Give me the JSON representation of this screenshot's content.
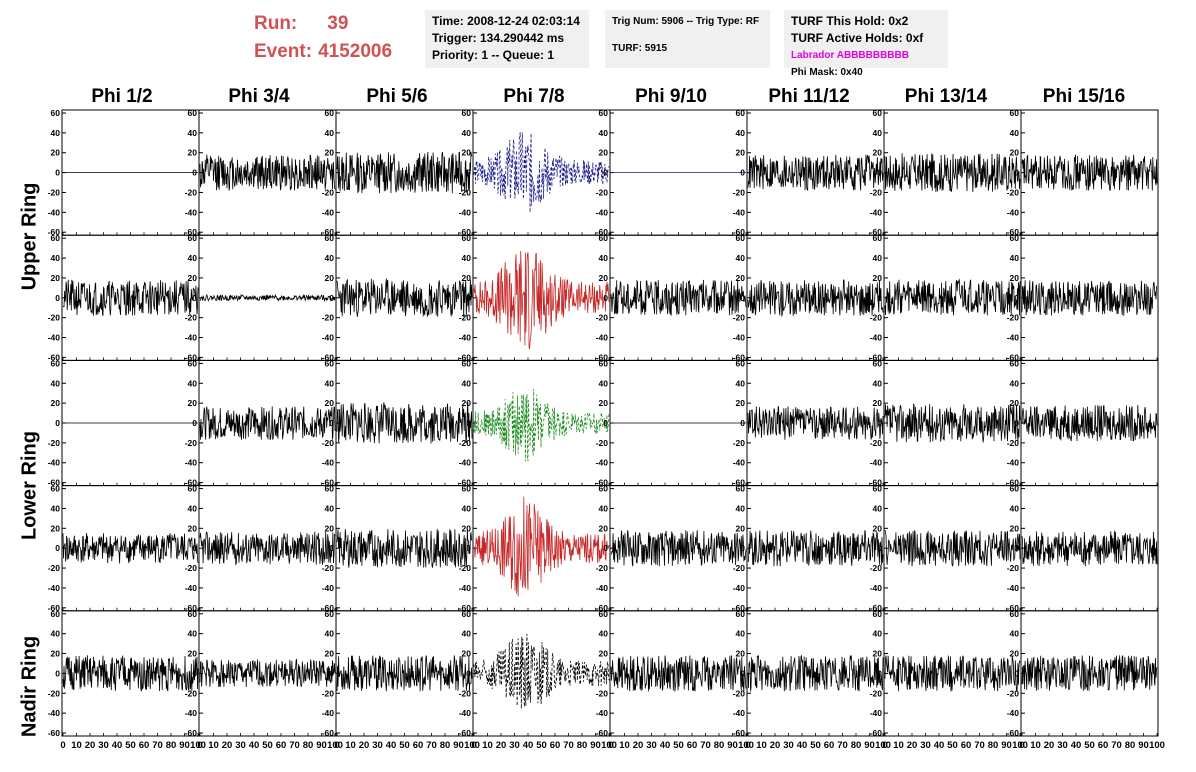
{
  "run_info": {
    "run_label": "Run:",
    "run_value": "39",
    "event_label": "Event:",
    "event_value": "4152006"
  },
  "info_boxes": {
    "time": "Time: 2008-12-24 02:03:14",
    "trigger": "Trigger: 134.290442 ms",
    "priority": "Priority: 1 -- Queue: 1",
    "trig_num": "Trig Num: 5906 -- Trig Type: RF",
    "turf": "TURF: 5915",
    "turf_this_hold": "TURF This Hold: 0x2",
    "turf_active_holds": "TURF Active Holds: 0xf",
    "labrador": "Labrador ABBBBBBBBB",
    "phi_mask": "Phi Mask: 0x40"
  },
  "columns": [
    "Phi 1/2",
    "Phi 3/4",
    "Phi 5/6",
    "Phi 7/8",
    "Phi 9/10",
    "Phi 11/12",
    "Phi 13/14",
    "Phi 15/16"
  ],
  "rings": [
    {
      "label": "Upper Ring",
      "rows": [
        0,
        1
      ]
    },
    {
      "label": "Lower Ring",
      "rows": [
        2,
        3
      ]
    },
    {
      "label": "Nadir Ring",
      "rows": [
        4
      ]
    }
  ],
  "colors": {
    "run_text": "#d05252",
    "trace_default": "#000000",
    "trace_blue": "#1a1a8c",
    "trace_red": "#c62828",
    "trace_green": "#1e8c1e",
    "labrador_text": "#e000e0",
    "info_bg": "#f0f0f0"
  },
  "chart_data": {
    "type": "line",
    "description_units": "waveform voltage vs sample, 8 phi columns x 5 rows",
    "xlim": [
      0,
      100
    ],
    "ylim": [
      -60,
      60
    ],
    "x_ticks": [
      0,
      10,
      20,
      30,
      40,
      50,
      60,
      70,
      80,
      90,
      100
    ],
    "y_ticks": [
      -60,
      -40,
      -20,
      0,
      20,
      40,
      60
    ],
    "x_tick_labels": [
      "0",
      "10",
      "20",
      "30",
      "40",
      "50",
      "60",
      "70",
      "80",
      "90",
      "100"
    ],
    "y_tick_labels": [
      "-60",
      "-40",
      "-20",
      "0",
      "20",
      "40",
      "60"
    ],
    "panels": [
      {
        "row": 0,
        "col": 0,
        "kind": "flat",
        "amp": 0,
        "color": "trace_default",
        "style": "solid",
        "seed": 11
      },
      {
        "row": 0,
        "col": 1,
        "kind": "noise",
        "amp": 13,
        "color": "trace_default",
        "style": "solid",
        "seed": 12
      },
      {
        "row": 0,
        "col": 2,
        "kind": "noise",
        "amp": 15,
        "color": "trace_default",
        "style": "solid",
        "seed": 13
      },
      {
        "row": 0,
        "col": 3,
        "kind": "pulse",
        "amp": 20,
        "color": "trace_blue",
        "style": "dashed",
        "seed": 14
      },
      {
        "row": 0,
        "col": 4,
        "kind": "flat",
        "amp": 0,
        "color": "trace_blue",
        "style": "solid",
        "seed": 15
      },
      {
        "row": 0,
        "col": 5,
        "kind": "noise",
        "amp": 13,
        "color": "trace_default",
        "style": "solid",
        "seed": 16
      },
      {
        "row": 0,
        "col": 6,
        "kind": "noise",
        "amp": 14,
        "color": "trace_default",
        "style": "solid",
        "seed": 17
      },
      {
        "row": 0,
        "col": 7,
        "kind": "noise",
        "amp": 13,
        "color": "trace_default",
        "style": "solid",
        "seed": 18
      },
      {
        "row": 1,
        "col": 0,
        "kind": "noise",
        "amp": 13,
        "color": "trace_default",
        "style": "solid",
        "seed": 21
      },
      {
        "row": 1,
        "col": 1,
        "kind": "noise",
        "amp": 2,
        "color": "trace_default",
        "style": "solid",
        "seed": 22
      },
      {
        "row": 1,
        "col": 2,
        "kind": "noise",
        "amp": 14,
        "color": "trace_default",
        "style": "solid",
        "seed": 23
      },
      {
        "row": 1,
        "col": 3,
        "kind": "pulse",
        "amp": 26,
        "color": "trace_red",
        "style": "solid",
        "seed": 24
      },
      {
        "row": 1,
        "col": 4,
        "kind": "noise",
        "amp": 13,
        "color": "trace_default",
        "style": "solid",
        "seed": 25
      },
      {
        "row": 1,
        "col": 5,
        "kind": "noise",
        "amp": 13,
        "color": "trace_default",
        "style": "solid",
        "seed": 26
      },
      {
        "row": 1,
        "col": 6,
        "kind": "noise",
        "amp": 13,
        "color": "trace_default",
        "style": "solid",
        "seed": 27
      },
      {
        "row": 1,
        "col": 7,
        "kind": "noise",
        "amp": 13,
        "color": "trace_default",
        "style": "solid",
        "seed": 28
      },
      {
        "row": 2,
        "col": 0,
        "kind": "flat",
        "amp": 0,
        "color": "trace_default",
        "style": "solid",
        "seed": 31
      },
      {
        "row": 2,
        "col": 1,
        "kind": "noise",
        "amp": 12,
        "color": "trace_default",
        "style": "solid",
        "seed": 32
      },
      {
        "row": 2,
        "col": 2,
        "kind": "noise",
        "amp": 15,
        "color": "trace_default",
        "style": "solid",
        "seed": 33
      },
      {
        "row": 2,
        "col": 3,
        "kind": "pulse",
        "amp": 18,
        "color": "trace_green",
        "style": "dashed",
        "seed": 34
      },
      {
        "row": 2,
        "col": 4,
        "kind": "flat",
        "amp": 0,
        "color": "trace_default",
        "style": "solid",
        "seed": 35
      },
      {
        "row": 2,
        "col": 5,
        "kind": "noise",
        "amp": 12,
        "color": "trace_default",
        "style": "solid",
        "seed": 36
      },
      {
        "row": 2,
        "col": 6,
        "kind": "noise",
        "amp": 14,
        "color": "trace_default",
        "style": "solid",
        "seed": 37
      },
      {
        "row": 2,
        "col": 7,
        "kind": "noise",
        "amp": 13,
        "color": "trace_default",
        "style": "solid",
        "seed": 38
      },
      {
        "row": 3,
        "col": 0,
        "kind": "noise",
        "amp": 11,
        "color": "trace_default",
        "style": "solid",
        "seed": 41
      },
      {
        "row": 3,
        "col": 1,
        "kind": "noise",
        "amp": 12,
        "color": "trace_default",
        "style": "solid",
        "seed": 42
      },
      {
        "row": 3,
        "col": 2,
        "kind": "noise",
        "amp": 14,
        "color": "trace_default",
        "style": "solid",
        "seed": 43
      },
      {
        "row": 3,
        "col": 3,
        "kind": "pulse",
        "amp": 24,
        "color": "trace_red",
        "style": "solid",
        "seed": 44
      },
      {
        "row": 3,
        "col": 4,
        "kind": "noise",
        "amp": 13,
        "color": "trace_default",
        "style": "solid",
        "seed": 45
      },
      {
        "row": 3,
        "col": 5,
        "kind": "noise",
        "amp": 13,
        "color": "trace_default",
        "style": "solid",
        "seed": 46
      },
      {
        "row": 3,
        "col": 6,
        "kind": "noise",
        "amp": 13,
        "color": "trace_default",
        "style": "solid",
        "seed": 47
      },
      {
        "row": 3,
        "col": 7,
        "kind": "noise",
        "amp": 13,
        "color": "trace_default",
        "style": "solid",
        "seed": 48
      },
      {
        "row": 4,
        "col": 0,
        "kind": "noise",
        "amp": 13,
        "color": "trace_default",
        "style": "solid",
        "seed": 51
      },
      {
        "row": 4,
        "col": 1,
        "kind": "noise",
        "amp": 10,
        "color": "trace_default",
        "style": "solid",
        "seed": 52
      },
      {
        "row": 4,
        "col": 2,
        "kind": "noise",
        "amp": 13,
        "color": "trace_default",
        "style": "solid",
        "seed": 53
      },
      {
        "row": 4,
        "col": 3,
        "kind": "pulse",
        "amp": 20,
        "color": "trace_default",
        "style": "dashed",
        "seed": 54
      },
      {
        "row": 4,
        "col": 4,
        "kind": "noise",
        "amp": 13,
        "color": "trace_default",
        "style": "solid",
        "seed": 55
      },
      {
        "row": 4,
        "col": 5,
        "kind": "noise",
        "amp": 13,
        "color": "trace_default",
        "style": "solid",
        "seed": 56
      },
      {
        "row": 4,
        "col": 6,
        "kind": "noise",
        "amp": 13,
        "color": "trace_default",
        "style": "solid",
        "seed": 57
      },
      {
        "row": 4,
        "col": 7,
        "kind": "noise",
        "amp": 13,
        "color": "trace_default",
        "style": "solid",
        "seed": 58
      }
    ]
  }
}
